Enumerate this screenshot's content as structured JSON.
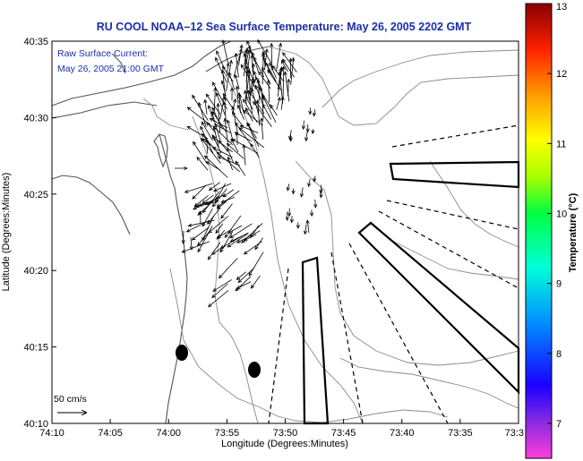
{
  "chart_data": {
    "type": "map",
    "title": "RU COOL  NOAA–12  Sea Surface Temperature:  May 26, 2005 2202 GMT",
    "xlabel": "Longitude (Degrees:Minutes)",
    "ylabel": "Latitude (Degrees:Minutes)",
    "x_ticks": [
      "74:10",
      "74:05",
      "74:00",
      "73:55",
      "73:50",
      "73:45",
      "73:40",
      "73:35",
      "73:3"
    ],
    "y_ticks": [
      "40:35",
      "40:30",
      "40:25",
      "40:20",
      "40:15",
      "40:10"
    ],
    "xlim_min": [
      -74.1667,
      -73.5
    ],
    "ylim_min": [
      40.1667,
      40.5833
    ],
    "legend_line1": "Raw Surface Current:",
    "legend_line2": "May 26, 2005 21:00 GMT",
    "scale_label": "50 cm/s",
    "colorbar": {
      "label": "Temperature (°C)",
      "ticks": [
        "13",
        "12",
        "11",
        "10",
        "9",
        "8",
        "7"
      ],
      "range": [
        6.5,
        13
      ]
    }
  },
  "colors": {
    "title": "#1a2fa8",
    "contour": "#8a8a8a",
    "land": "#555555"
  }
}
